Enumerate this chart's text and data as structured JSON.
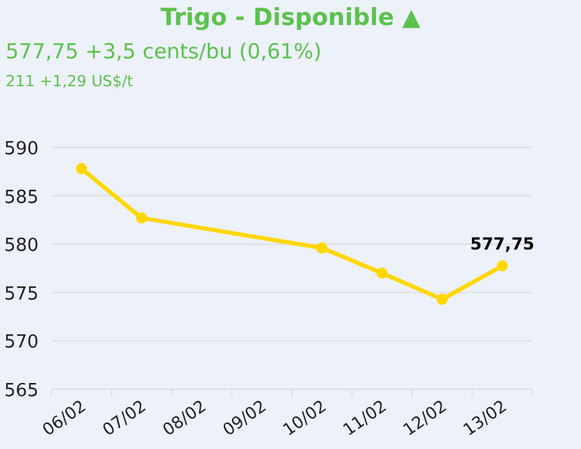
{
  "chart_data": {
    "type": "line",
    "title": "Trigo - Disponible ▲",
    "subtitle": "577,75 +3,5 cents/bu (0,61%)",
    "annotations": [
      "211 +1,29 US$/t"
    ],
    "categories": [
      "06/02",
      "07/02",
      "08/02",
      "09/02",
      "10/02",
      "11/02",
      "12/02",
      "13/02"
    ],
    "series": [
      {
        "color": "#ffd700",
        "values": [
          587.8,
          582.7,
          null,
          null,
          579.6,
          577.0,
          574.3,
          577.75
        ],
        "value_labels": [
          null,
          null,
          null,
          null,
          null,
          null,
          null,
          "577,75"
        ]
      }
    ],
    "ylim": [
      565,
      590
    ],
    "yticks": [
      565,
      570,
      575,
      580,
      585,
      590
    ],
    "grid": "y",
    "marker": "circle"
  }
}
